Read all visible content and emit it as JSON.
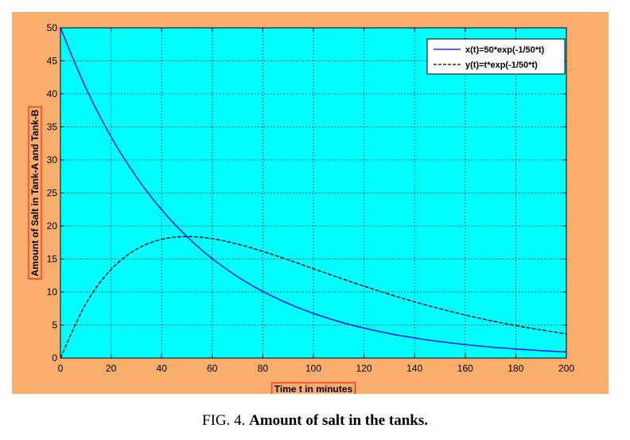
{
  "caption": {
    "prefix": "FIG. 4.",
    "title": "Amount of salt in the tanks."
  },
  "colors": {
    "panel": "#f9ae6e",
    "plot_bg": "#00ffff",
    "series_x": "#0000ff",
    "series_y": "#000000",
    "label_border": "#ff0000"
  },
  "chart_data": {
    "type": "line",
    "title": "",
    "xlabel": "Time t in minutes",
    "ylabel": "Amount of  Salt in Tank-A and Tank-B",
    "xlim": [
      0,
      200
    ],
    "ylim": [
      0,
      50
    ],
    "xticks": [
      0,
      20,
      40,
      60,
      80,
      100,
      120,
      140,
      160,
      180,
      200
    ],
    "yticks": [
      0,
      5,
      10,
      15,
      20,
      25,
      30,
      35,
      40,
      45,
      50
    ],
    "grid": true,
    "legend_position": "top-right",
    "x": [
      0,
      10,
      20,
      30,
      40,
      50,
      60,
      70,
      80,
      90,
      100,
      110,
      120,
      130,
      140,
      150,
      160,
      170,
      180,
      190,
      200
    ],
    "series": [
      {
        "name": "x(t)=50*exp(-1/50*t)",
        "style": "solid",
        "values": [
          50.0,
          40.94,
          33.52,
          27.44,
          22.47,
          18.39,
          15.06,
          12.33,
          10.09,
          8.26,
          6.77,
          5.54,
          4.54,
          3.71,
          3.04,
          2.49,
          2.04,
          1.67,
          1.37,
          1.12,
          0.92
        ]
      },
      {
        "name": "y(t)=t*exp(-1/50*t)",
        "style": "dashed",
        "values": [
          0.0,
          8.19,
          13.41,
          16.46,
          17.97,
          18.39,
          18.07,
          17.26,
          16.15,
          14.88,
          13.53,
          12.19,
          10.89,
          9.66,
          8.51,
          7.47,
          6.52,
          5.67,
          4.92,
          4.26,
          3.66
        ]
      }
    ]
  }
}
